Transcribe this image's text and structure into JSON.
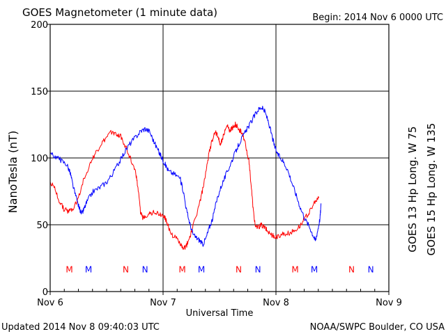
{
  "chart_data": {
    "type": "line",
    "title": "GOES Magnetometer (1 minute data)",
    "begin_label": "Begin:  2014 Nov 6 0000 UTC",
    "xlabel": "Universal Time",
    "ylabel": "NanoTesla (nT)",
    "xlim": [
      0,
      3
    ],
    "ylim": [
      0,
      200
    ],
    "yticks": [
      0,
      50,
      100,
      150,
      200
    ],
    "xticks": [
      {
        "day": 0,
        "label": "Nov 6"
      },
      {
        "day": 1,
        "label": "Nov 7"
      },
      {
        "day": 2,
        "label": "Nov 8"
      },
      {
        "day": 3,
        "label": "Nov 9"
      }
    ],
    "grid": true,
    "series": [
      {
        "name": "GOES 13 Hp",
        "label": "GOES 13 Hp  Long. W 75",
        "color": "#ff0000",
        "points": [
          [
            0,
            82
          ],
          [
            0.04,
            77
          ],
          [
            0.08,
            68
          ],
          [
            0.12,
            62
          ],
          [
            0.16,
            60
          ],
          [
            0.2,
            62
          ],
          [
            0.25,
            70
          ],
          [
            0.3,
            85
          ],
          [
            0.35,
            95
          ],
          [
            0.4,
            103
          ],
          [
            0.45,
            110
          ],
          [
            0.5,
            115
          ],
          [
            0.55,
            120
          ],
          [
            0.58,
            118
          ],
          [
            0.62,
            117
          ],
          [
            0.66,
            110
          ],
          [
            0.7,
            102
          ],
          [
            0.72,
            98
          ],
          [
            0.76,
            88
          ],
          [
            0.78,
            75
          ],
          [
            0.8,
            60
          ],
          [
            0.82,
            55
          ],
          [
            0.84,
            57
          ],
          [
            0.88,
            58
          ],
          [
            0.92,
            60
          ],
          [
            0.96,
            58
          ],
          [
            1.0,
            57
          ],
          [
            1.02,
            55
          ],
          [
            1.05,
            48
          ],
          [
            1.08,
            42
          ],
          [
            1.12,
            40
          ],
          [
            1.16,
            35
          ],
          [
            1.18,
            31
          ],
          [
            1.21,
            35
          ],
          [
            1.24,
            42
          ],
          [
            1.27,
            50
          ],
          [
            1.31,
            62
          ],
          [
            1.34,
            72
          ],
          [
            1.37,
            84
          ],
          [
            1.4,
            100
          ],
          [
            1.43,
            112
          ],
          [
            1.46,
            120
          ],
          [
            1.49,
            115
          ],
          [
            1.51,
            110
          ],
          [
            1.54,
            118
          ],
          [
            1.57,
            124
          ],
          [
            1.59,
            120
          ],
          [
            1.62,
            123
          ],
          [
            1.64,
            125
          ],
          [
            1.67,
            122
          ],
          [
            1.7,
            118
          ],
          [
            1.73,
            110
          ],
          [
            1.76,
            98
          ],
          [
            1.78,
            80
          ],
          [
            1.8,
            60
          ],
          [
            1.82,
            48
          ],
          [
            1.84,
            48
          ],
          [
            1.87,
            50
          ],
          [
            1.9,
            48
          ],
          [
            1.93,
            45
          ],
          [
            1.97,
            42
          ],
          [
            2.0,
            40
          ],
          [
            2.03,
            42
          ],
          [
            2.07,
            43
          ],
          [
            2.12,
            44
          ],
          [
            2.17,
            46
          ],
          [
            2.22,
            50
          ],
          [
            2.26,
            55
          ],
          [
            2.3,
            60
          ],
          [
            2.34,
            66
          ],
          [
            2.38,
            70
          ]
        ]
      },
      {
        "name": "GOES 15 Hp",
        "label": "GOES 15 Hp  Long. W 135",
        "color": "#0000ff",
        "points": [
          [
            0,
            103
          ],
          [
            0.05,
            101
          ],
          [
            0.1,
            98
          ],
          [
            0.15,
            95
          ],
          [
            0.18,
            88
          ],
          [
            0.2,
            80
          ],
          [
            0.23,
            70
          ],
          [
            0.26,
            62
          ],
          [
            0.28,
            58
          ],
          [
            0.3,
            62
          ],
          [
            0.33,
            68
          ],
          [
            0.38,
            75
          ],
          [
            0.44,
            78
          ],
          [
            0.5,
            82
          ],
          [
            0.55,
            88
          ],
          [
            0.6,
            95
          ],
          [
            0.65,
            103
          ],
          [
            0.7,
            110
          ],
          [
            0.75,
            115
          ],
          [
            0.8,
            120
          ],
          [
            0.84,
            122
          ],
          [
            0.88,
            120
          ],
          [
            0.92,
            112
          ],
          [
            0.96,
            105
          ],
          [
            0.99,
            100
          ],
          [
            1.02,
            95
          ],
          [
            1.05,
            90
          ],
          [
            1.1,
            88
          ],
          [
            1.15,
            85
          ],
          [
            1.18,
            75
          ],
          [
            1.21,
            60
          ],
          [
            1.24,
            50
          ],
          [
            1.27,
            42
          ],
          [
            1.3,
            40
          ],
          [
            1.33,
            38
          ],
          [
            1.35,
            35
          ],
          [
            1.38,
            40
          ],
          [
            1.41,
            48
          ],
          [
            1.44,
            55
          ],
          [
            1.48,
            70
          ],
          [
            1.52,
            80
          ],
          [
            1.56,
            88
          ],
          [
            1.6,
            96
          ],
          [
            1.64,
            104
          ],
          [
            1.68,
            112
          ],
          [
            1.72,
            118
          ],
          [
            1.76,
            124
          ],
          [
            1.8,
            130
          ],
          [
            1.84,
            136
          ],
          [
            1.87,
            138
          ],
          [
            1.9,
            135
          ],
          [
            1.93,
            128
          ],
          [
            1.96,
            118
          ],
          [
            1.99,
            108
          ],
          [
            2.02,
            102
          ],
          [
            2.06,
            98
          ],
          [
            2.1,
            92
          ],
          [
            2.14,
            82
          ],
          [
            2.18,
            72
          ],
          [
            2.22,
            62
          ],
          [
            2.26,
            54
          ],
          [
            2.3,
            48
          ],
          [
            2.33,
            42
          ],
          [
            2.35,
            38
          ],
          [
            2.37,
            46
          ],
          [
            2.39,
            55
          ],
          [
            2.4,
            66
          ]
        ]
      }
    ],
    "markers": [
      {
        "letter": "M",
        "day": 0.17,
        "color": "#ff0000"
      },
      {
        "letter": "M",
        "day": 0.34,
        "color": "#0000ff"
      },
      {
        "letter": "N",
        "day": 0.67,
        "color": "#ff0000"
      },
      {
        "letter": "N",
        "day": 0.84,
        "color": "#0000ff"
      },
      {
        "letter": "M",
        "day": 1.17,
        "color": "#ff0000"
      },
      {
        "letter": "M",
        "day": 1.34,
        "color": "#0000ff"
      },
      {
        "letter": "N",
        "day": 1.67,
        "color": "#ff0000"
      },
      {
        "letter": "N",
        "day": 1.84,
        "color": "#0000ff"
      },
      {
        "letter": "M",
        "day": 2.17,
        "color": "#ff0000"
      },
      {
        "letter": "M",
        "day": 2.34,
        "color": "#0000ff"
      },
      {
        "letter": "N",
        "day": 2.67,
        "color": "#ff0000"
      },
      {
        "letter": "N",
        "day": 2.84,
        "color": "#0000ff"
      }
    ],
    "marker_level_nT": 17
  },
  "footer": {
    "updated": "Updated 2014 Nov  8 09:40:03 UTC",
    "credit": "NOAA/SWPC Boulder, CO USA"
  }
}
